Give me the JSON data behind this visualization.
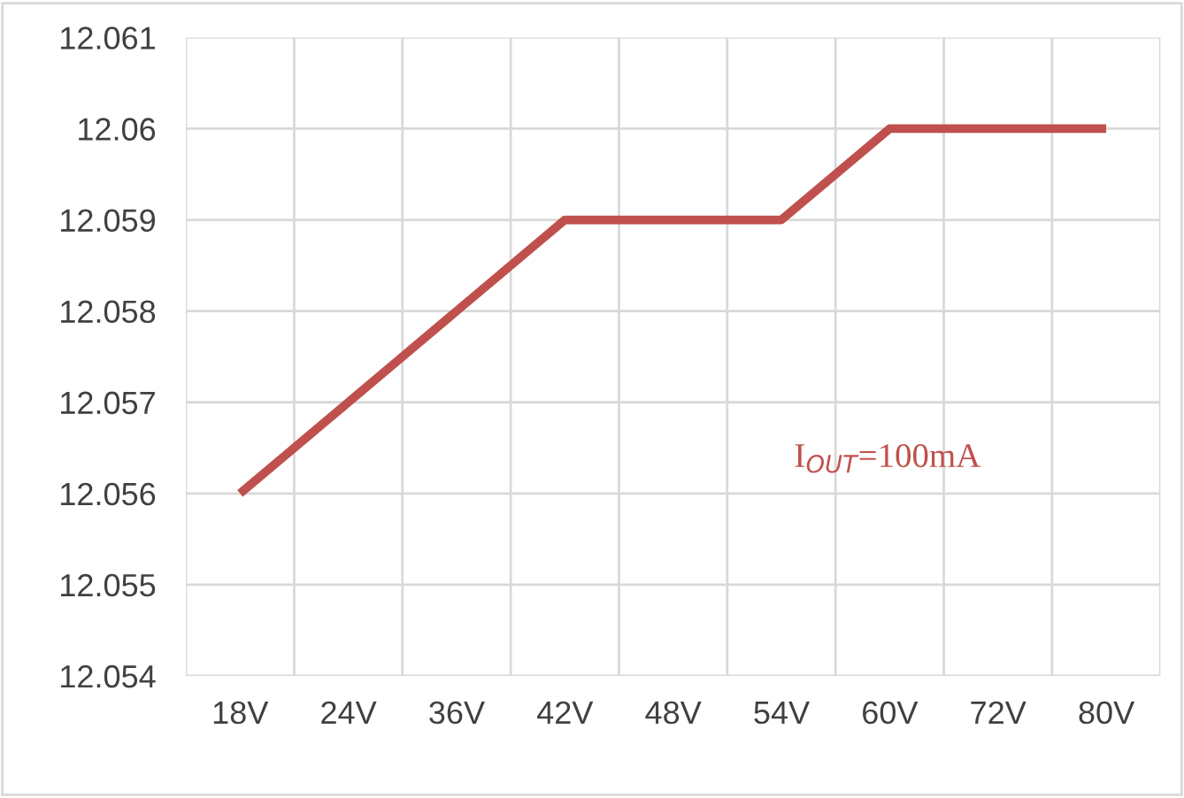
{
  "chart_data": {
    "type": "line",
    "categories": [
      "18V",
      "24V",
      "36V",
      "42V",
      "48V",
      "54V",
      "60V",
      "72V",
      "80V"
    ],
    "series": [
      {
        "color": "#c0504d",
        "values": [
          12.056,
          12.057,
          12.058,
          12.059,
          12.059,
          12.059,
          12.06,
          12.06,
          12.06
        ]
      }
    ],
    "ylim": [
      12.054,
      12.061
    ],
    "yticks": [
      12.054,
      12.055,
      12.056,
      12.057,
      12.058,
      12.059,
      12.06,
      12.061
    ],
    "grid": true,
    "marker": "none",
    "line_style": "solid",
    "annotations": [
      "I$_{OUT}$=100mA"
    ]
  }
}
